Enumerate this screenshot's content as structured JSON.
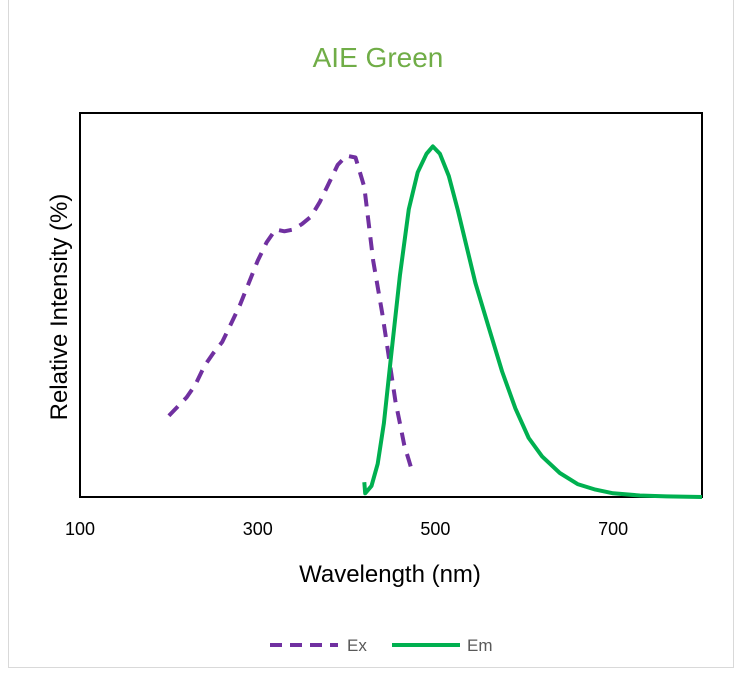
{
  "chart_data": {
    "type": "line",
    "title": "AIE Green",
    "title_color": "#70ad47",
    "xlabel": "Wavelength (nm)",
    "ylabel": "Relative Intensity (%)",
    "xlim": [
      100,
      800
    ],
    "ylim": [
      0,
      100
    ],
    "x_ticks": [
      100,
      300,
      500,
      700
    ],
    "x_tick_labels": [
      "100",
      "300",
      "500",
      "700"
    ],
    "y_ticks_shown": false,
    "grid": false,
    "legend_position": "bottom",
    "series": [
      {
        "name": "Ex",
        "color": "#7030a0",
        "dash": "dashed",
        "points": [
          [
            200,
            22
          ],
          [
            210,
            24.5
          ],
          [
            220,
            27
          ],
          [
            230,
            30.5
          ],
          [
            240,
            35.5
          ],
          [
            250,
            39
          ],
          [
            260,
            42
          ],
          [
            270,
            47
          ],
          [
            280,
            52
          ],
          [
            290,
            58
          ],
          [
            300,
            64
          ],
          [
            310,
            69
          ],
          [
            320,
            72.5
          ],
          [
            330,
            72
          ],
          [
            340,
            72.5
          ],
          [
            350,
            74
          ],
          [
            360,
            76
          ],
          [
            370,
            80
          ],
          [
            380,
            85
          ],
          [
            390,
            90
          ],
          [
            400,
            92.5
          ],
          [
            410,
            92
          ],
          [
            420,
            84
          ],
          [
            430,
            64
          ],
          [
            440,
            50
          ],
          [
            445,
            42
          ],
          [
            450,
            34
          ],
          [
            455,
            26
          ],
          [
            460,
            20
          ],
          [
            465,
            14
          ],
          [
            470,
            10
          ],
          [
            475,
            6
          ]
        ]
      },
      {
        "name": "Em",
        "color": "#00b050",
        "dash": "solid",
        "points": [
          [
            420,
            4
          ],
          [
            421,
            1
          ],
          [
            428,
            3
          ],
          [
            435,
            9
          ],
          [
            442,
            20
          ],
          [
            450,
            38
          ],
          [
            460,
            60
          ],
          [
            470,
            78
          ],
          [
            480,
            88
          ],
          [
            490,
            93
          ],
          [
            497,
            95
          ],
          [
            505,
            93
          ],
          [
            515,
            87
          ],
          [
            525,
            78
          ],
          [
            535,
            68
          ],
          [
            545,
            58
          ],
          [
            560,
            46
          ],
          [
            575,
            34
          ],
          [
            590,
            24
          ],
          [
            605,
            16
          ],
          [
            620,
            11
          ],
          [
            640,
            6.5
          ],
          [
            660,
            3.5
          ],
          [
            680,
            2
          ],
          [
            700,
            1
          ],
          [
            730,
            0.4
          ],
          [
            760,
            0.15
          ],
          [
            800,
            0
          ]
        ]
      }
    ]
  }
}
